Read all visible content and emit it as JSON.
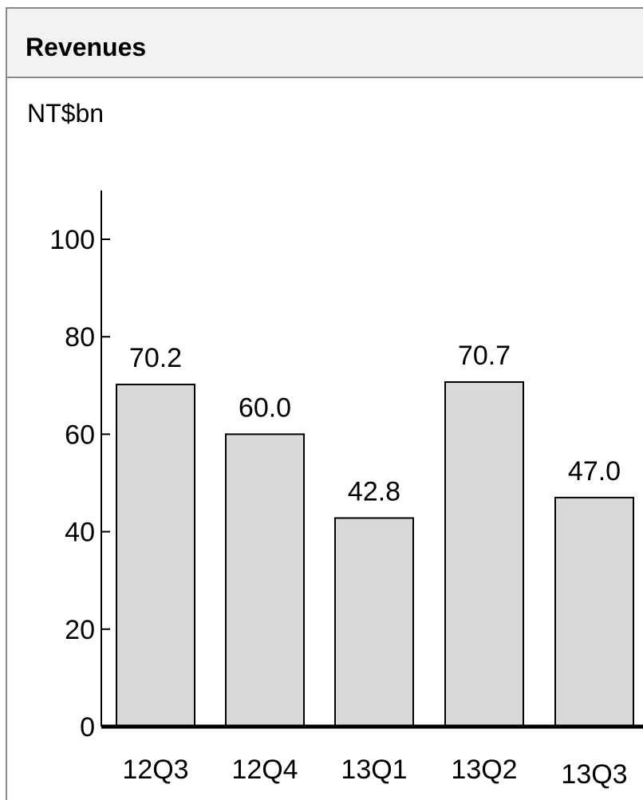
{
  "chart_data": {
    "type": "bar",
    "title": "Revenues",
    "unit_label": "NT$bn",
    "categories": [
      "12Q3",
      "12Q4",
      "13Q1",
      "13Q2",
      "13Q3"
    ],
    "values": [
      70.2,
      60.0,
      42.8,
      70.7,
      47.0
    ],
    "value_labels": [
      "70.2",
      "60.0",
      "42.8",
      "70.7",
      "47.0"
    ],
    "y_ticks": [
      0,
      20,
      40,
      60,
      80,
      100
    ],
    "ylim": [
      0,
      110
    ],
    "grid": false,
    "bar_color": "#d9d9d9"
  }
}
